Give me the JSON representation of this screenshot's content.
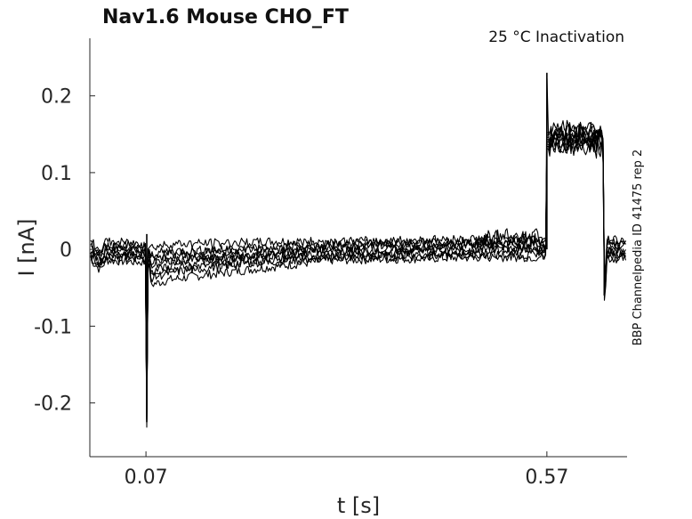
{
  "chart_data": {
    "type": "line",
    "title": "Nav1.6  Mouse  CHO_FT",
    "subtitle": "25 °C  Inactivation",
    "xlabel": "t [s]",
    "ylabel": "I [nA]",
    "side_note": "BBP Channelpedia ID 41475 rep 2",
    "xlim": [
      0.0,
      0.67
    ],
    "ylim": [
      -0.27,
      0.275
    ],
    "x_ticks": [
      {
        "value": 0.07,
        "label": "0.07"
      },
      {
        "value": 0.57,
        "label": "0.57"
      }
    ],
    "y_ticks": [
      {
        "value": 0.2,
        "label": "0.2"
      },
      {
        "value": 0.1,
        "label": "0.1"
      },
      {
        "value": 0.0,
        "label": "0"
      },
      {
        "value": -0.1,
        "label": "-0.1"
      },
      {
        "value": -0.2,
        "label": "-0.2"
      }
    ],
    "grid": false,
    "line_color": "#000000",
    "series": [
      {
        "values": {
          "baseline_early": 0.0,
          "baseline_mid": 0.0,
          "pulse": 0.145,
          "after": 0.0,
          "points": [
            [
              0.0,
              0.0
            ],
            [
              0.013,
              -0.015
            ],
            [
              0.02,
              -0.002
            ],
            [
              0.07,
              -0.005
            ],
            [
              0.0705,
              0.02
            ],
            [
              0.071,
              -0.225
            ],
            [
              0.0715,
              -0.01
            ],
            [
              0.1,
              -0.005
            ],
            [
              0.2,
              -0.003
            ],
            [
              0.3,
              -0.002
            ],
            [
              0.4,
              0.0
            ],
            [
              0.5,
              0.002
            ],
            [
              0.569,
              0.002
            ],
            [
              0.57,
              0.23
            ],
            [
              0.572,
              0.145
            ],
            [
              0.64,
              0.145
            ],
            [
              0.6405,
              0.0
            ],
            [
              0.642,
              -0.06
            ],
            [
              0.645,
              0.0
            ],
            [
              0.67,
              0.0
            ]
          ]
        }
      }
    ]
  }
}
